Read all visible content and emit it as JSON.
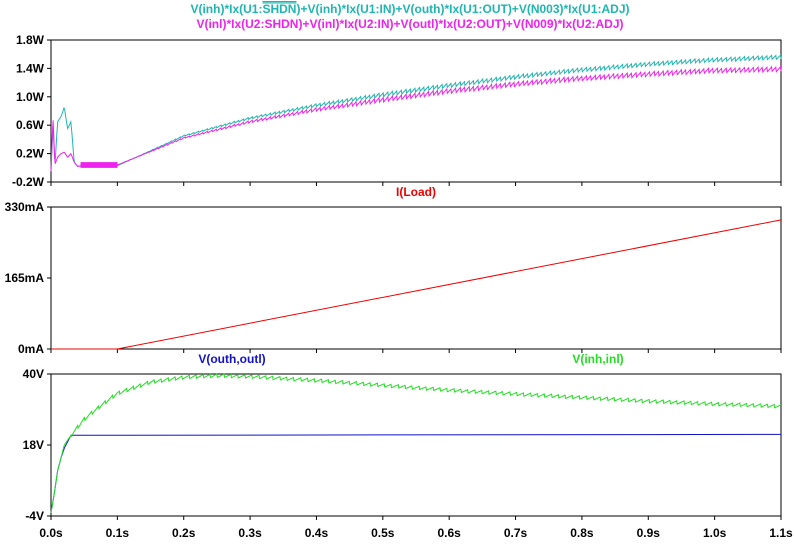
{
  "colors": {
    "teal": "#1fb5b0",
    "magenta": "#ee22ee",
    "red": "#ee0000",
    "blue": "#1111cc",
    "green": "#22dd22"
  },
  "chart_data": [
    {
      "type": "line",
      "title_prefix": "V(inh)*Ix(U1:",
      "title_overline": "SHDN",
      "title_suffix": ")+V(inh)*Ix(U1:IN)+V(outh)*Ix(U1:OUT)+V(N003)*Ix(U1:ADJ)",
      "title2": "V(inl)*Ix(U2:SHDN)+V(inl)*Ix(U2:IN)+V(outl)*Ix(U2:OUT)+V(N009)*Ix(U2:ADJ)",
      "ylim": [
        -0.2,
        1.8
      ],
      "yticks": [
        "1.8W",
        "1.4W",
        "1.0W",
        "0.6W",
        "0.2W",
        "-0.2W"
      ],
      "ytick_values": [
        1.8,
        1.4,
        1.0,
        0.6,
        0.2,
        -0.2
      ],
      "xlim": [
        0,
        1.1
      ],
      "series": [
        {
          "name": "V(inh)*Ix(U1:SHDN)+V(inh)*Ix(U1:IN)+V(outh)*Ix(U1:OUT)+V(N003)*Ix(U1:ADJ)",
          "color_key": "teal",
          "x": [
            0,
            0.003,
            0.006,
            0.01,
            0.015,
            0.02,
            0.025,
            0.03,
            0.035,
            0.04,
            0.06,
            0.08,
            0.1,
            0.2,
            0.3,
            0.4,
            0.5,
            0.6,
            0.7,
            0.8,
            0.9,
            1.0,
            1.1
          ],
          "values": [
            -0.05,
            0.6,
            0.05,
            0.65,
            0.72,
            0.85,
            0.55,
            0.65,
            0.08,
            0.02,
            0.03,
            0.02,
            0.03,
            0.45,
            0.7,
            0.88,
            1.03,
            1.16,
            1.28,
            1.38,
            1.46,
            1.52,
            1.56
          ],
          "ripple": 0.06
        },
        {
          "name": "V(inl)*Ix(U2:SHDN)+V(inl)*Ix(U2:IN)+V(outl)*Ix(U2:OUT)+V(N009)*Ix(U2:ADJ)",
          "color_key": "magenta",
          "x": [
            0,
            0.003,
            0.006,
            0.01,
            0.015,
            0.02,
            0.025,
            0.03,
            0.035,
            0.04,
            0.06,
            0.08,
            0.1,
            0.2,
            0.3,
            0.4,
            0.5,
            0.6,
            0.7,
            0.8,
            0.9,
            1.0,
            1.1
          ],
          "values": [
            -0.05,
            0.7,
            0.05,
            0.15,
            0.2,
            0.22,
            0.15,
            0.2,
            0.08,
            0.02,
            0.05,
            0.04,
            0.04,
            0.42,
            0.65,
            0.82,
            0.96,
            1.08,
            1.18,
            1.26,
            1.32,
            1.37,
            1.39
          ],
          "ripple": 0.07
        }
      ]
    },
    {
      "type": "line",
      "title": "I(Load)",
      "ylim": [
        0,
        330
      ],
      "yticks": [
        "330mA",
        "165mA",
        "0mA"
      ],
      "ytick_values": [
        330,
        165,
        0
      ],
      "xlim": [
        0,
        1.1
      ],
      "series": [
        {
          "name": "I(Load)",
          "color_key": "red",
          "x": [
            0,
            0.1,
            1.1
          ],
          "values": [
            0,
            0,
            300
          ],
          "ripple": 0
        }
      ]
    },
    {
      "type": "line",
      "title_left": "V(outh,outl)",
      "title_right": "V(inh,inl)",
      "ylim": [
        -4,
        40
      ],
      "yticks": [
        "40V",
        "18V",
        "-4V"
      ],
      "ytick_values": [
        40,
        18,
        -4
      ],
      "xlim": [
        0,
        1.1
      ],
      "xticks": [
        "0.0s",
        "0.1s",
        "0.2s",
        "0.3s",
        "0.4s",
        "0.5s",
        "0.6s",
        "0.7s",
        "0.8s",
        "0.9s",
        "1.0s",
        "1.1s"
      ],
      "xtick_values": [
        0,
        0.1,
        0.2,
        0.3,
        0.4,
        0.5,
        0.6,
        0.7,
        0.8,
        0.9,
        1.0,
        1.1
      ],
      "series": [
        {
          "name": "V(outh,outl)",
          "color_key": "blue",
          "x": [
            0,
            0.005,
            0.01,
            0.015,
            0.02,
            0.025,
            0.03,
            1.1
          ],
          "values": [
            -3,
            3,
            10,
            14,
            17,
            19,
            21,
            21.3
          ],
          "ripple": 0
        },
        {
          "name": "V(inh,inl)",
          "color_key": "green",
          "x": [
            0,
            0.005,
            0.01,
            0.015,
            0.02,
            0.03,
            0.05,
            0.08,
            0.1,
            0.15,
            0.2,
            0.25,
            0.3,
            0.4,
            0.5,
            0.6,
            0.7,
            0.8,
            0.9,
            1.0,
            1.1
          ],
          "values": [
            -3,
            3,
            10,
            14,
            18,
            21,
            26,
            31,
            34,
            37.5,
            39,
            39.5,
            39.2,
            38,
            36.5,
            35,
            33.8,
            32.7,
            31.6,
            30.7,
            30
          ],
          "ripple": 1.1
        }
      ]
    }
  ]
}
